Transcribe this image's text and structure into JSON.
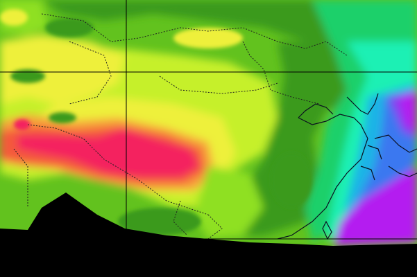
{
  "map": {
    "palette": {
      "dark_green": "#3a9a1c",
      "mid_green": "#62c21e",
      "light_green": "#8fe022",
      "yellow_green": "#c6f02a",
      "yellow": "#eef03a",
      "orange": "#f6a03a",
      "red_orange": "#f45a3a",
      "hot_pink": "#f4245e",
      "green_cyan": "#1ed06a",
      "aqua": "#1ef0b4",
      "cyan_blue": "#1eb4e6",
      "blue": "#3a78f0",
      "violet": "#8a3af0",
      "purple": "#b41ef0",
      "no_data": "#000000",
      "border_line": "#202020",
      "coast_line": "#0a1020",
      "grid_line": "#000000"
    },
    "features": [
      "temperature-field",
      "country-borders",
      "coastlines",
      "lat-lon-grid",
      "no-data-mask"
    ]
  }
}
